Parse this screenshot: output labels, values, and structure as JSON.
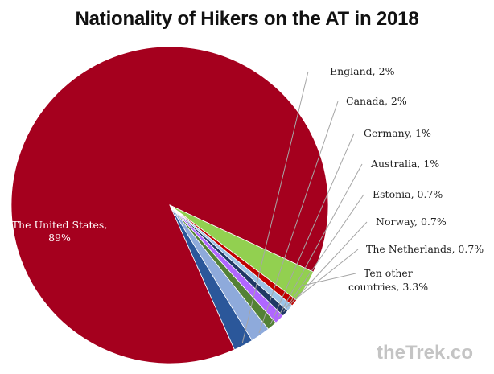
{
  "chart_data": {
    "type": "pie",
    "title": "Nationality of Hikers on the AT in 2018",
    "slices": [
      {
        "label": "The United States, 89%",
        "value": 89,
        "color": "#a5001e"
      },
      {
        "label": "England, 2%",
        "value": 2,
        "color": "#2b579a"
      },
      {
        "label": "Canada, 2%",
        "value": 2,
        "color": "#8eaadb"
      },
      {
        "label": "Germany, 1%",
        "value": 1,
        "color": "#538135"
      },
      {
        "label": "Australia, 1%",
        "value": 1,
        "color": "#b066ff"
      },
      {
        "label": "Estonia, 0.7%",
        "value": 0.7,
        "color": "#1f3864"
      },
      {
        "label": "Norway, 0.7%",
        "value": 0.7,
        "color": "#9dc3e6"
      },
      {
        "label": "The Netherlands, 0.7%",
        "value": 0.7,
        "color": "#c00000"
      },
      {
        "label": "Ten other countries, 3.3%",
        "value": 3.3,
        "color": "#92d050"
      }
    ],
    "legend": "none",
    "start_angle_deg": -25,
    "direction": "counterclockwise"
  },
  "watermark": "theTrek.co"
}
